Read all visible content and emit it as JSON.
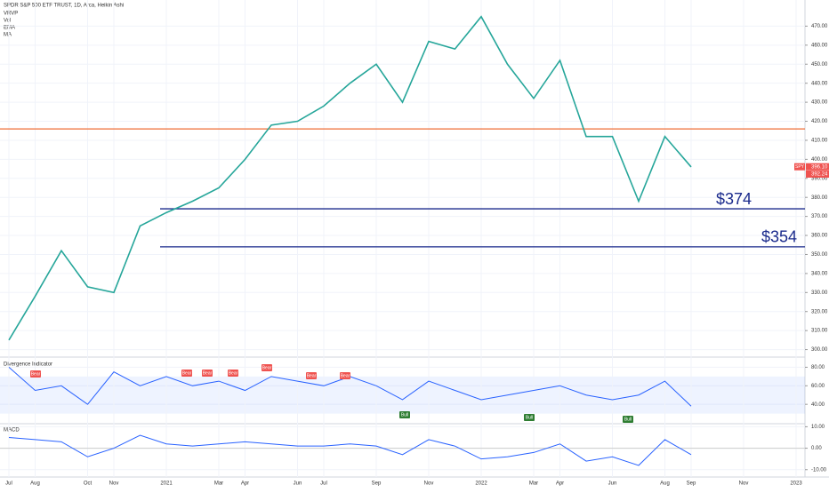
{
  "chart_data": {
    "type": "line",
    "title": "SPDR S&P 500 ETF TRUST, 1D, Arca, Heikin Ashi",
    "indicators": [
      "VRVP",
      "Vol",
      "EMA",
      "MA"
    ],
    "symbol": "SPY",
    "categories": [
      "Jul",
      "Aug",
      null,
      "Oct",
      "Nov",
      null,
      "2021",
      null,
      "Mar",
      "Apr",
      null,
      "Jun",
      "Jul",
      null,
      "Sep",
      null,
      "Nov",
      null,
      "2022",
      null,
      "Mar",
      "Apr",
      null,
      "Jun",
      null,
      "Aug",
      "Sep",
      null,
      "Nov",
      null,
      "2023"
    ],
    "series": [
      {
        "name": "SPY",
        "color": "#26a69a",
        "values": [
          305,
          328,
          352,
          333,
          330,
          365,
          372,
          378,
          385,
          400,
          418,
          420,
          428,
          440,
          450,
          430,
          462,
          458,
          475,
          450,
          432,
          452,
          412,
          412,
          378,
          412,
          396,
          null,
          null,
          null,
          null
        ]
      }
    ],
    "ylim": [
      297,
      480
    ],
    "yticks": [
      {
        "value": 300,
        "label": "300.00"
      },
      {
        "value": 310,
        "label": "310.00"
      },
      {
        "value": 320,
        "label": "320.00"
      },
      {
        "value": 330,
        "label": "330.00"
      },
      {
        "value": 340,
        "label": "340.00"
      },
      {
        "value": 350,
        "label": "350.00"
      },
      {
        "value": 360,
        "label": "360.00"
      },
      {
        "value": 370,
        "label": "370.00"
      },
      {
        "value": 380,
        "label": "380.00"
      },
      {
        "value": 390,
        "label": "390.00"
      },
      {
        "value": 400,
        "label": "400.00"
      },
      {
        "value": 410,
        "label": "410.00"
      },
      {
        "value": 420,
        "label": "420.00"
      },
      {
        "value": 430,
        "label": "430.00"
      },
      {
        "value": 440,
        "label": "440.00"
      },
      {
        "value": 450,
        "label": "450.00"
      },
      {
        "value": 460,
        "label": "460.00"
      },
      {
        "value": 470,
        "label": "470.00"
      }
    ],
    "levels": [
      {
        "value": 416,
        "color": "#ef6c35"
      },
      {
        "value": 374,
        "label": "$374",
        "color": "#1a2a8c"
      },
      {
        "value": 354,
        "label": "$354",
        "color": "#1a2a8c"
      }
    ],
    "price_tags": [
      {
        "value": 396.1,
        "label": "396.10",
        "color": "#ef5350"
      },
      {
        "value": 392.24,
        "label": "392.24",
        "color": "#ef5350"
      }
    ],
    "grid": true,
    "oscillator": {
      "title": "Divergence Indicator",
      "color": "#2962ff",
      "values": [
        80,
        55,
        60,
        40,
        75,
        60,
        70,
        60,
        65,
        55,
        70,
        65,
        60,
        70,
        60,
        45,
        65,
        55,
        45,
        50,
        55,
        60,
        50,
        45,
        50,
        65,
        38,
        null,
        null,
        null,
        null
      ],
      "ylim": [
        21,
        90
      ],
      "yticks": [
        {
          "value": 80,
          "label": "80.00"
        },
        {
          "value": 60,
          "label": "60.00"
        },
        {
          "value": 40,
          "label": "40.00"
        }
      ],
      "labels": [
        "Bear",
        "Bear",
        "Bear",
        "Bear",
        "Bear",
        "Bear",
        "Bear",
        "Bull",
        "Bull",
        "Bull"
      ]
    },
    "macd": {
      "title": "MACD",
      "color": "#2962ff",
      "values": [
        5,
        4,
        3,
        -4,
        0,
        6,
        2,
        1,
        2,
        3,
        2,
        1,
        1,
        2,
        1,
        -3,
        4,
        1,
        -5,
        -4,
        -2,
        2,
        -6,
        -4,
        -8,
        4,
        -3,
        null,
        null,
        null,
        null
      ],
      "ylim": [
        -13,
        11
      ],
      "yticks": [
        {
          "value": 10,
          "label": "10.00"
        },
        {
          "value": 0,
          "label": "0.00"
        },
        {
          "value": -10,
          "label": "-10.00"
        }
      ]
    }
  }
}
